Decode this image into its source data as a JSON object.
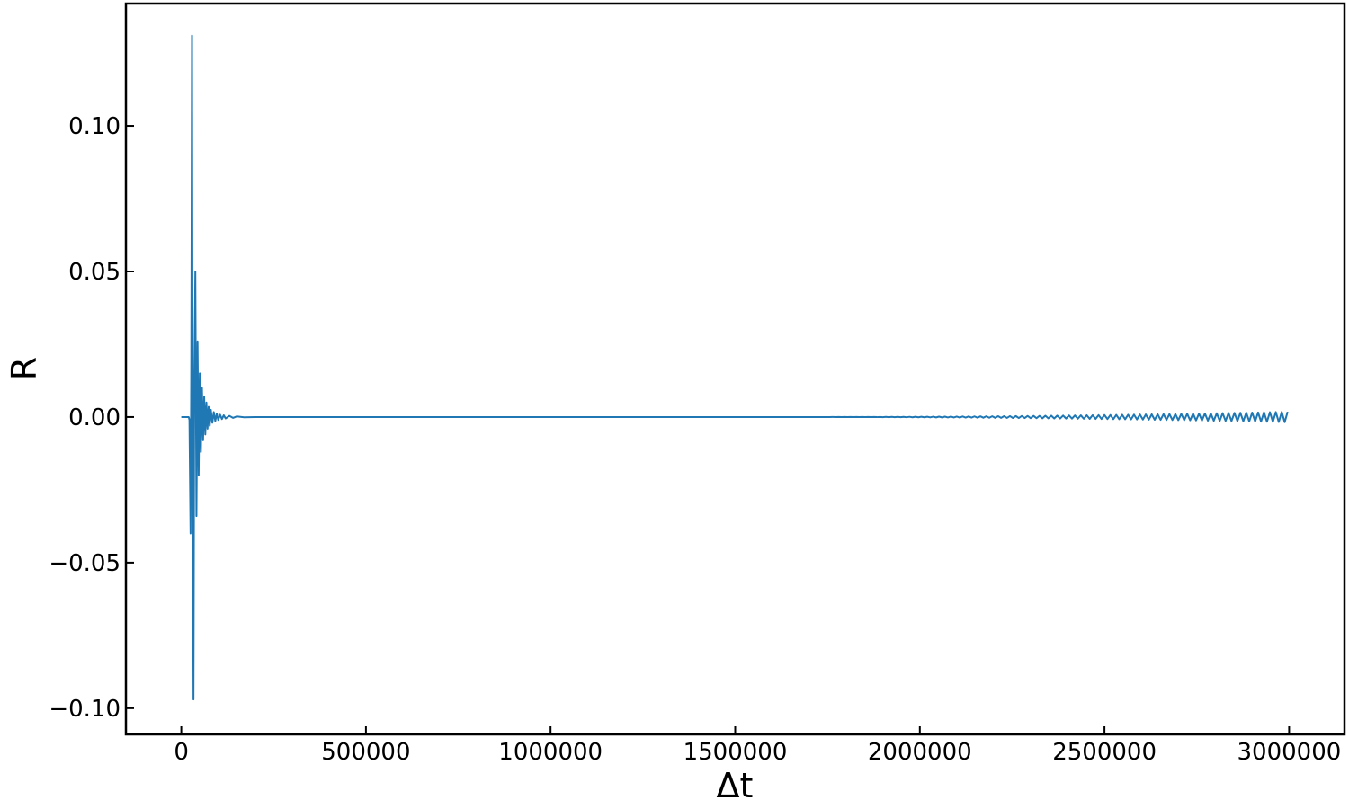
{
  "chart_data": {
    "type": "line",
    "title": "",
    "xlabel": "Δt",
    "ylabel": "R",
    "xlim": [
      -150000,
      3150000
    ],
    "ylim": [
      -0.109,
      0.142
    ],
    "grid": false,
    "legend": "none",
    "x_ticks": [
      {
        "value": 0,
        "label": "0"
      },
      {
        "value": 500000,
        "label": "500000"
      },
      {
        "value": 1000000,
        "label": "1000000"
      },
      {
        "value": 1500000,
        "label": "1500000"
      },
      {
        "value": 2000000,
        "label": "2000000"
      },
      {
        "value": 2500000,
        "label": "2500000"
      },
      {
        "value": 3000000,
        "label": "3000000"
      }
    ],
    "y_ticks": [
      {
        "value": 0.1,
        "label": "0.10"
      },
      {
        "value": 0.05,
        "label": "0.05"
      },
      {
        "value": 0.0,
        "label": "0.00"
      },
      {
        "value": -0.05,
        "label": "−0.05"
      },
      {
        "value": -0.1,
        "label": "−0.10"
      }
    ],
    "series": [
      {
        "color": "#1f77b4",
        "points": [
          [
            0,
            0.0
          ],
          [
            20000,
            0.0
          ],
          [
            22000,
            -0.001
          ],
          [
            25000,
            -0.04
          ],
          [
            27000,
            0.02
          ],
          [
            29000,
            0.131
          ],
          [
            31000,
            -0.02
          ],
          [
            33000,
            -0.097
          ],
          [
            35000,
            0.01
          ],
          [
            38000,
            0.05
          ],
          [
            41000,
            -0.034
          ],
          [
            44000,
            0.026
          ],
          [
            47000,
            -0.02
          ],
          [
            50000,
            0.015
          ],
          [
            53000,
            -0.012
          ],
          [
            56000,
            0.01
          ],
          [
            59000,
            -0.008
          ],
          [
            62000,
            0.007
          ],
          [
            65000,
            -0.006
          ],
          [
            68000,
            0.005
          ],
          [
            71000,
            -0.004
          ],
          [
            74000,
            0.0035
          ],
          [
            77000,
            -0.003
          ],
          [
            80000,
            0.0025
          ],
          [
            84000,
            -0.002
          ],
          [
            88000,
            0.0017
          ],
          [
            92000,
            -0.0014
          ],
          [
            96000,
            0.0012
          ],
          [
            100000,
            -0.001
          ],
          [
            105000,
            0.0008
          ],
          [
            110000,
            -0.0007
          ],
          [
            115000,
            0.0006
          ],
          [
            120000,
            -0.0005
          ],
          [
            130000,
            0.0004
          ],
          [
            140000,
            -0.0003
          ],
          [
            150000,
            0.0002
          ],
          [
            170000,
            -0.0001
          ],
          [
            200000,
            0.0
          ],
          [
            3000000,
            0.0
          ]
        ]
      }
    ]
  }
}
